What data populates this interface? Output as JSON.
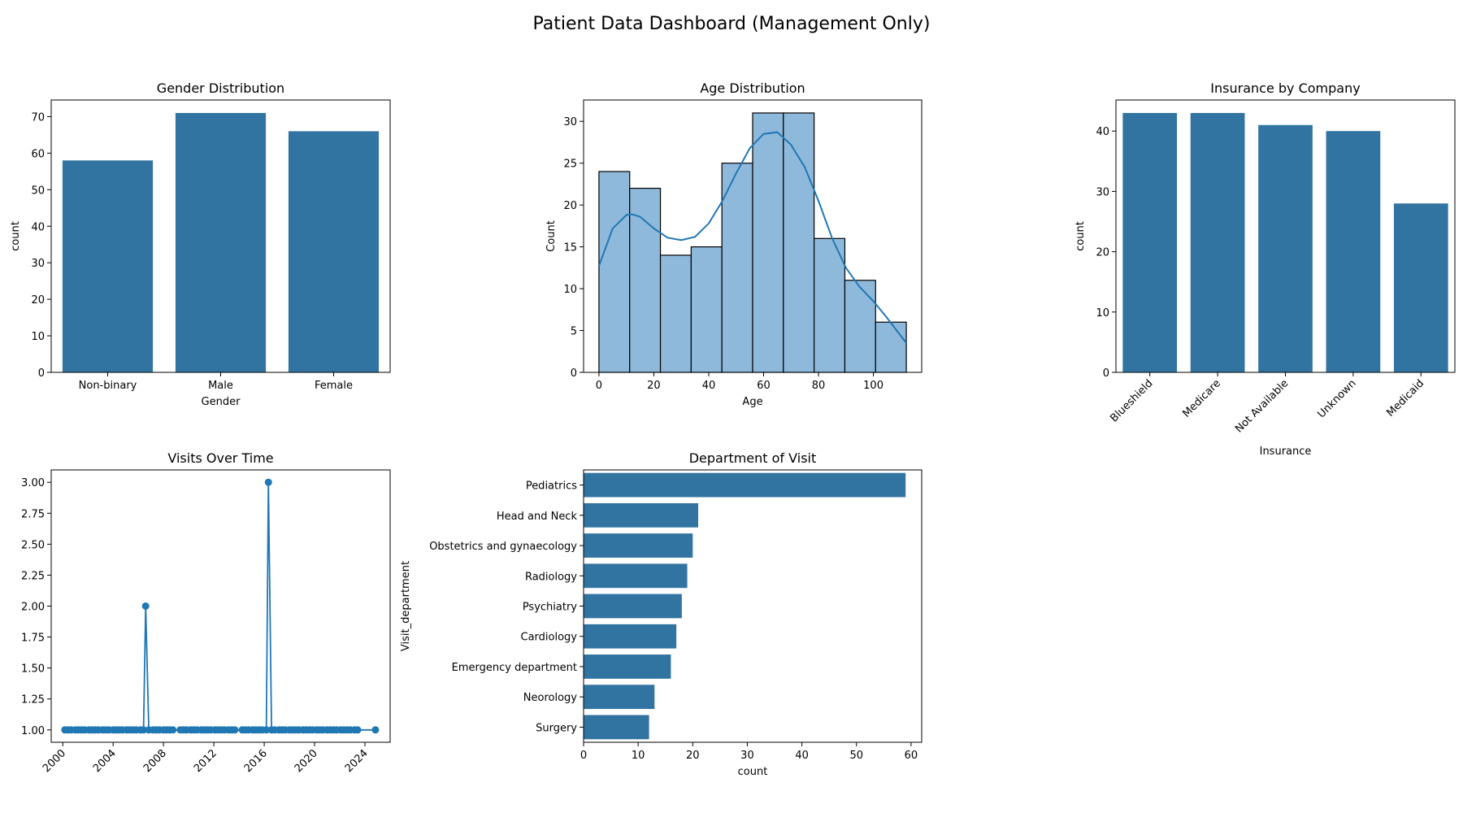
{
  "title": "Patient Data Dashboard (Management Only)",
  "colors": {
    "bar": "#3274a1",
    "hist_fill": "#8fb9db",
    "edge": "#000000",
    "line": "#1f77b4"
  },
  "chart_data": [
    {
      "type": "bar",
      "title": "Gender Distribution",
      "xlabel": "Gender",
      "ylabel": "count",
      "categories": [
        "Non-binary",
        "Male",
        "Female"
      ],
      "values": [
        58,
        71,
        66
      ],
      "ylim": [
        0,
        74.55
      ],
      "yticks": [
        0,
        10,
        20,
        30,
        40,
        50,
        60,
        70
      ],
      "grid": false
    },
    {
      "type": "bar",
      "title": "Age Distribution",
      "subtype": "histogram with KDE",
      "xlabel": "Age",
      "ylabel": "Count",
      "bin_edges": [
        0,
        11.2,
        22.4,
        33.6,
        44.8,
        56,
        67.2,
        78.4,
        89.6,
        100.8,
        112
      ],
      "values": [
        24,
        22,
        14,
        15,
        25,
        31,
        31,
        16,
        11,
        6
      ],
      "kde": {
        "x": [
          0,
          5,
          10,
          12,
          15,
          20,
          25,
          30,
          35,
          40,
          45,
          50,
          55,
          60,
          65,
          70,
          75,
          80,
          85,
          90,
          95,
          100,
          105,
          112
        ],
        "y": [
          12.7,
          17.2,
          18.8,
          18.9,
          18.6,
          17.2,
          16.1,
          15.8,
          16.2,
          17.8,
          20.5,
          23.8,
          26.8,
          28.5,
          28.7,
          27.2,
          24.5,
          20.5,
          16.0,
          12.5,
          10.2,
          8.5,
          6.5,
          3.5
        ]
      },
      "xlim": [
        -5.6,
        117.6
      ],
      "ylim": [
        0,
        32.55
      ],
      "xticks": [
        0,
        20,
        40,
        60,
        80,
        100
      ],
      "yticks": [
        0,
        5,
        10,
        15,
        20,
        25,
        30
      ],
      "grid": false
    },
    {
      "type": "bar",
      "title": "Insurance by Company",
      "xlabel": "Insurance",
      "ylabel": "count",
      "categories": [
        "Blueshield",
        "Medicare",
        "Not Available",
        "Unknown",
        "Medicaid"
      ],
      "values": [
        43,
        43,
        41,
        40,
        28
      ],
      "ylim": [
        0,
        45.15
      ],
      "yticks": [
        0,
        10,
        20,
        30,
        40
      ],
      "tick_rotation": 45,
      "grid": false
    },
    {
      "type": "line",
      "title": "Visits Over Time",
      "xlabel": "",
      "ylabel": "",
      "x": [
        "2000-03",
        "2000-06",
        "2000-09",
        "2001-01",
        "2001-04",
        "2001-07",
        "2001-10",
        "2002-02",
        "2002-05",
        "2002-08",
        "2002-11",
        "2003-03",
        "2003-06",
        "2003-09",
        "2004-01",
        "2004-04",
        "2004-07",
        "2004-10",
        "2005-02",
        "2005-05",
        "2005-08",
        "2005-11",
        "2006-03",
        "2006-06",
        "2006-08",
        "2006-11",
        "2007-03",
        "2007-06",
        "2007-09",
        "2008-01",
        "2008-04",
        "2008-07",
        "2008-10",
        "2009-05",
        "2009-08",
        "2009-11",
        "2010-03",
        "2010-06",
        "2010-09",
        "2011-01",
        "2011-04",
        "2011-07",
        "2011-10",
        "2012-02",
        "2012-05",
        "2012-08",
        "2012-11",
        "2013-03",
        "2013-06",
        "2013-09",
        "2014-04",
        "2014-07",
        "2014-10",
        "2015-02",
        "2015-05",
        "2015-08",
        "2015-11",
        "2016-03",
        "2016-05",
        "2016-08",
        "2016-11",
        "2017-03",
        "2017-06",
        "2017-09",
        "2018-01",
        "2018-04",
        "2018-07",
        "2018-10",
        "2019-02",
        "2019-05",
        "2019-08",
        "2019-11",
        "2020-03",
        "2020-06",
        "2020-09",
        "2021-01",
        "2021-04",
        "2021-07",
        "2021-10",
        "2022-02",
        "2022-05",
        "2022-08",
        "2022-11",
        "2023-03",
        "2023-06",
        "2024-11"
      ],
      "y": [
        1,
        1,
        1,
        1,
        1,
        1,
        1,
        1,
        1,
        1,
        1,
        1,
        1,
        1,
        1,
        1,
        1,
        1,
        1,
        1,
        1,
        1,
        1,
        1,
        2,
        1,
        1,
        1,
        1,
        1,
        1,
        1,
        1,
        1,
        1,
        1,
        1,
        1,
        1,
        1,
        1,
        1,
        1,
        1,
        1,
        1,
        1,
        1,
        1,
        1,
        1,
        1,
        1,
        1,
        1,
        1,
        1,
        1,
        3,
        1,
        1,
        1,
        1,
        1,
        1,
        1,
        1,
        1,
        1,
        1,
        1,
        1,
        1,
        1,
        1,
        1,
        1,
        1,
        1,
        1,
        1,
        1,
        1,
        1,
        1,
        1
      ],
      "xlim": [
        "1999-02",
        "2026-01"
      ],
      "ylim": [
        0.9,
        3.1
      ],
      "xticks": [
        "2000",
        "2004",
        "2008",
        "2012",
        "2016",
        "2020",
        "2024"
      ],
      "yticks": [
        "1.00",
        "1.25",
        "1.50",
        "1.75",
        "2.00",
        "2.25",
        "2.50",
        "2.75",
        "3.00"
      ],
      "tick_rotation": 45,
      "markers": true,
      "grid": false
    },
    {
      "type": "bar",
      "orientation": "horizontal",
      "title": "Department of Visit",
      "xlabel": "count",
      "ylabel": "Visit_department",
      "categories": [
        "Pediatrics",
        "Head and Neck",
        "Obstetrics and gynaecology",
        "Radiology",
        "Psychiatry",
        "Cardiology",
        "Emergency department",
        "Neorology",
        "Surgery"
      ],
      "values": [
        59,
        21,
        20,
        19,
        18,
        17,
        16,
        13,
        12
      ],
      "xlim": [
        0,
        61.95
      ],
      "xticks": [
        0,
        10,
        20,
        30,
        40,
        50,
        60
      ],
      "grid": false
    }
  ]
}
